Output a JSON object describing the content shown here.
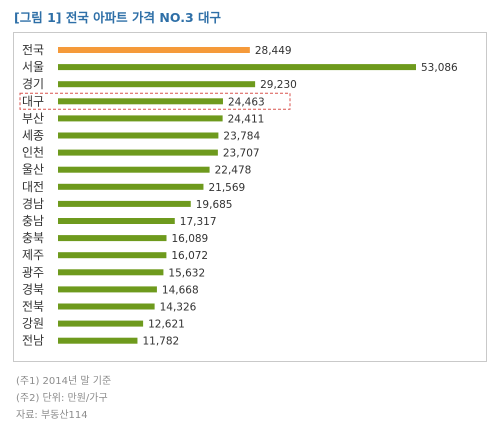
{
  "title": "[그림 1] 전국 아파트 가격 NO.3 대구",
  "chart_data": {
    "type": "bar",
    "orientation": "horizontal",
    "title": "[그림 1] 전국 아파트 가격 NO.3 대구",
    "categories": [
      "전국",
      "서울",
      "경기",
      "대구",
      "부산",
      "세종",
      "인천",
      "울산",
      "대전",
      "경남",
      "충남",
      "충북",
      "제주",
      "광주",
      "경북",
      "전북",
      "강원",
      "전남"
    ],
    "values": [
      28449,
      53086,
      29230,
      24463,
      24411,
      23784,
      23707,
      22478,
      21569,
      19685,
      17317,
      16089,
      16072,
      15632,
      14668,
      14326,
      12621,
      11782
    ],
    "value_labels": [
      "28,449",
      "53,086",
      "29,230",
      "24,463",
      "24,411",
      "23,784",
      "23,707",
      "22,478",
      "21,569",
      "19,685",
      "17,317",
      "16,089",
      "16,072",
      "15,632",
      "14,668",
      "14,326",
      "12,621",
      "11,782"
    ],
    "highlight_category": "전국",
    "highlight_color": "#f59a3a",
    "bar_color": "#6e9a1d",
    "boxed_category": "대구",
    "box_color": "#d9534f",
    "xlim": [
      0,
      55000
    ]
  },
  "notes": [
    "(주1) 2014년 말 기준",
    "(주2) 단위: 만원/가구",
    "자료: 부동산114"
  ]
}
